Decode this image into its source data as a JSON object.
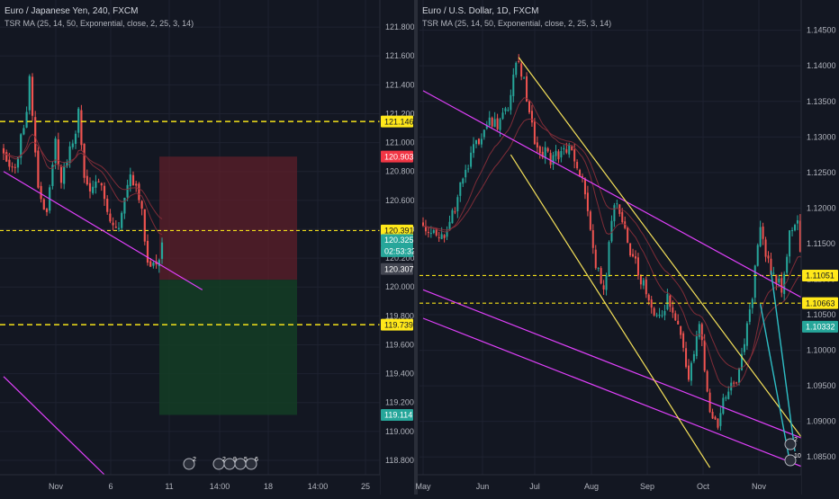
{
  "colors": {
    "background": "#131722",
    "grid": "#1e2230",
    "text": "#b2b5be",
    "up": "#26a69a",
    "down": "#ef5350",
    "ma": "#8b2f3a",
    "magenta": "#e040fb",
    "yellow_line": "#f5e15a",
    "dash_line": "#f5e11a",
    "cyan_line": "#2fbfc6",
    "price_tag_dark": "#434651",
    "tag_green": "#26a69a",
    "tag_red": "#f23645",
    "tag_yellow": "#ffe81a"
  },
  "charts": [
    {
      "id": "eurjpy",
      "title": "Euro / Japanese Yen, 240, FXCM",
      "indicator": "TSR MA (25, 14, 50, Exponential, close, 2, 25, 3, 14)",
      "x_ticks": [
        "Nov",
        "6",
        "11",
        "14:00",
        "18",
        "14:00",
        "25"
      ],
      "y_ticks": [
        "121.800",
        "121.600",
        "121.400",
        "121.200",
        "121.000",
        "120.800",
        "120.600",
        "120.400",
        "120.200",
        "120.000",
        "119.800",
        "119.600",
        "119.400",
        "119.200",
        "119.000",
        "118.800"
      ],
      "price_tags": [
        {
          "label": "121.146",
          "value": 121.146,
          "style": "yellow"
        },
        {
          "label": "120.903",
          "value": 120.903,
          "style": "red"
        },
        {
          "label": "120.391",
          "value": 120.391,
          "style": "yellow"
        },
        {
          "label": "120.325",
          "value": 120.325,
          "style": "green"
        },
        {
          "label": "02:53:32",
          "value": 120.248,
          "style": "green"
        },
        {
          "label": "120.307",
          "value": 120.125,
          "style": "dark"
        },
        {
          "label": "119.739",
          "value": 119.739,
          "style": "yellow"
        },
        {
          "label": "119.114",
          "value": 119.114,
          "style": "green"
        }
      ],
      "chart_data": {
        "type": "candlestick",
        "ylim": [
          118.7,
          121.95
        ],
        "candle_count": 70,
        "candle_seed": 7,
        "price_path": [
          [
            0,
            120.95
          ],
          [
            4,
            120.8
          ],
          [
            8,
            121.25
          ],
          [
            9,
            121.45
          ],
          [
            12,
            120.7
          ],
          [
            15,
            120.5
          ],
          [
            18,
            121.0
          ],
          [
            20,
            120.75
          ],
          [
            24,
            121.0
          ],
          [
            26,
            121.2
          ],
          [
            28,
            120.75
          ],
          [
            31,
            120.65
          ],
          [
            34,
            120.75
          ],
          [
            37,
            120.45
          ],
          [
            40,
            120.4
          ],
          [
            44,
            120.8
          ],
          [
            47,
            120.65
          ],
          [
            50,
            120.2
          ],
          [
            53,
            120.15
          ],
          [
            55,
            120.3
          ]
        ],
        "dashed_levels": [
          121.146,
          120.391,
          119.739
        ],
        "position": {
          "entry": 120.05,
          "stop": 120.903,
          "target": 119.114
        },
        "trendlines": [
          {
            "color": "magenta",
            "points": [
              [
                0,
                120.8
              ],
              [
                69,
                119.98
              ]
            ]
          },
          {
            "color": "magenta",
            "points": [
              [
                0,
                119.38
              ],
              [
                35,
                118.7
              ]
            ]
          }
        ]
      },
      "markers": [
        {
          "glyphs": [
            "2"
          ]
        },
        {
          "glyphs": [
            "2",
            "9",
            "5",
            "6"
          ]
        }
      ]
    },
    {
      "id": "eurusd",
      "title": "Euro / U.S. Dollar, 1D, FXCM",
      "indicator": "TSR MA (25, 14, 50, Exponential, close, 2, 25, 3, 14)",
      "x_ticks": [
        "May",
        "Jun",
        "Jul",
        "Aug",
        "Sep",
        "Oct",
        "Nov"
      ],
      "y_ticks": [
        "1.14500",
        "1.14000",
        "1.13500",
        "1.13000",
        "1.12500",
        "1.12000",
        "1.11500",
        "1.11000",
        "1.10500",
        "1.10000",
        "1.09500",
        "1.09000",
        "1.08500"
      ],
      "price_tags": [
        {
          "label": "1.11051",
          "value": 1.11051,
          "style": "yellow"
        },
        {
          "label": "1.10663",
          "value": 1.10663,
          "style": "yellow"
        },
        {
          "label": "1.10332",
          "value": 1.10332,
          "style": "green"
        }
      ],
      "chart_data": {
        "type": "candlestick",
        "ylim": [
          1.0825,
          1.1485
        ],
        "candle_count": 132,
        "candle_seed": 13,
        "price_path": [
          [
            0,
            1.118
          ],
          [
            8,
            1.115
          ],
          [
            15,
            1.124
          ],
          [
            20,
            1.129
          ],
          [
            25,
            1.133
          ],
          [
            28,
            1.131
          ],
          [
            32,
            1.134
          ],
          [
            35,
            1.141
          ],
          [
            38,
            1.138
          ],
          [
            42,
            1.129
          ],
          [
            48,
            1.127
          ],
          [
            55,
            1.128
          ],
          [
            60,
            1.124
          ],
          [
            65,
            1.112
          ],
          [
            68,
            1.108
          ],
          [
            72,
            1.121
          ],
          [
            78,
            1.114
          ],
          [
            83,
            1.109
          ],
          [
            88,
            1.104
          ],
          [
            92,
            1.107
          ],
          [
            96,
            1.103
          ],
          [
            100,
            1.096
          ],
          [
            104,
            1.104
          ],
          [
            108,
            1.092
          ],
          [
            111,
            1.089
          ],
          [
            114,
            1.094
          ],
          [
            118,
            1.096
          ],
          [
            121,
            1.101
          ],
          [
            124,
            1.108
          ],
          [
            127,
            1.117
          ],
          [
            130,
            1.112
          ],
          [
            135,
            1.109
          ],
          [
            138,
            1.116
          ],
          [
            141,
            1.118
          ],
          [
            144,
            1.106
          ],
          [
            147,
            1.103
          ]
        ],
        "dashed_levels": [
          1.11051,
          1.10663
        ],
        "trendlines": [
          {
            "color": "magenta",
            "points": [
              [
                0,
                1.1365
              ],
              [
                147,
                1.1065
              ]
            ]
          },
          {
            "color": "magenta",
            "points": [
              [
                0,
                1.1085
              ],
              [
                147,
                1.087
              ]
            ]
          },
          {
            "color": "magenta",
            "points": [
              [
                0,
                1.1045
              ],
              [
                147,
                1.083
              ]
            ]
          },
          {
            "color": "yellow",
            "points": [
              [
                36,
                1.1412
              ],
              [
                147,
                1.0855
              ]
            ]
          },
          {
            "color": "yellow",
            "points": [
              [
                33,
                1.1275
              ],
              [
                108,
                1.0835
              ]
            ]
          },
          {
            "color": "cyan",
            "points": [
              [
                127,
                1.1065
              ],
              [
                138,
                1.0845
              ]
            ]
          },
          {
            "color": "cyan",
            "points": [
              [
                131,
                1.1112
              ],
              [
                140,
                1.0858
              ]
            ]
          }
        ]
      },
      "markers": [
        {
          "glyphs": [
            "2"
          ]
        },
        {
          "glyphs": [
            "10"
          ]
        }
      ]
    }
  ]
}
